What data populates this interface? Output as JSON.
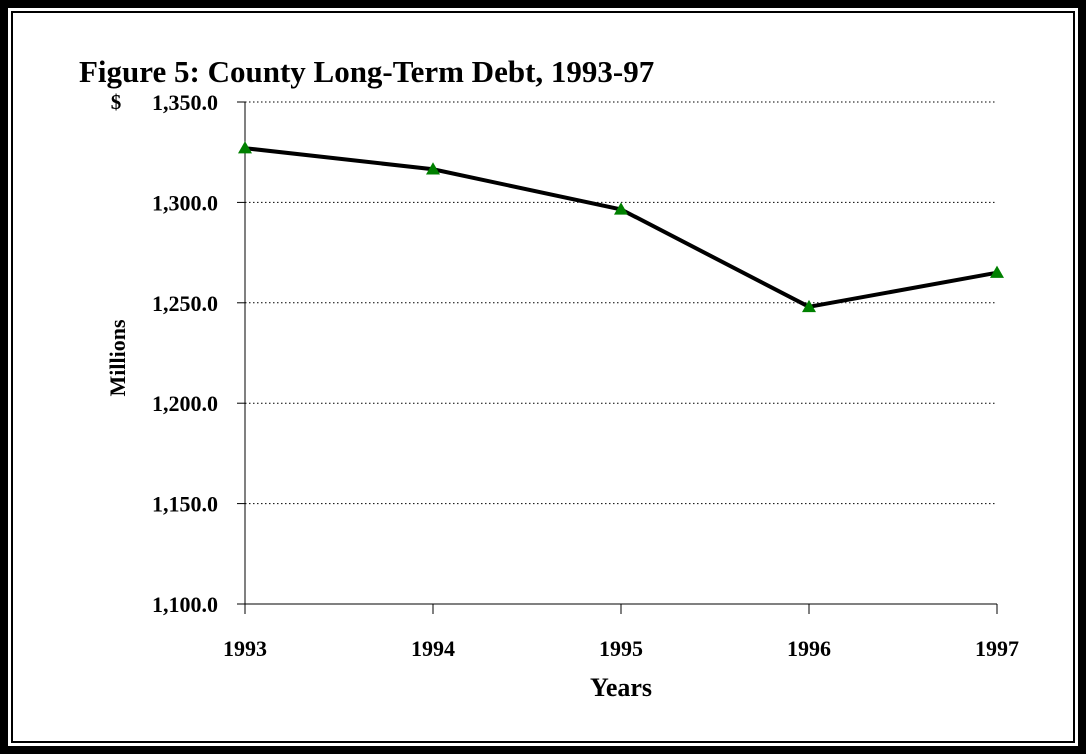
{
  "chart_data": {
    "type": "line",
    "title": "Figure 5: County Long-Term Debt, 1993-97",
    "xlabel": "Years",
    "ylabel": "Millions",
    "yunit": "$",
    "categories": [
      "1993",
      "1994",
      "1995",
      "1996",
      "1997"
    ],
    "values": [
      1327.0,
      1316.5,
      1296.5,
      1248.0,
      1265.0
    ],
    "ylim": [
      1100,
      1350
    ],
    "yticks": [
      1100,
      1150,
      1200,
      1250,
      1300,
      1350
    ],
    "ytick_labels": [
      "1,100.0",
      "1,150.0",
      "1,200.0",
      "1,250.0",
      "1,300.0",
      "1,350.0"
    ],
    "grid": "horizontal dotted",
    "legend": "none",
    "colors": {
      "line": "#000000",
      "marker": "#008000",
      "grid": "#000000"
    }
  }
}
